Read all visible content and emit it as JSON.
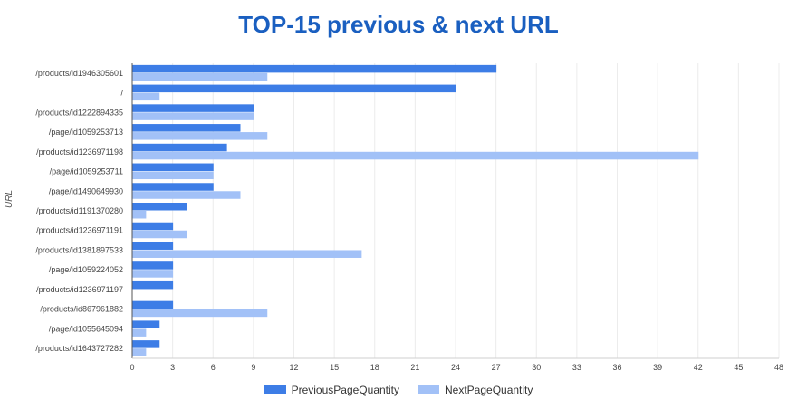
{
  "chart_data": {
    "type": "bar",
    "orientation": "horizontal",
    "title": "TOP-15 previous & next URL",
    "xlabel": "",
    "ylabel": "URL",
    "xlim": [
      0,
      48
    ],
    "xticks": [
      0,
      3,
      6,
      9,
      12,
      15,
      18,
      21,
      24,
      27,
      30,
      33,
      36,
      39,
      42,
      45,
      48
    ],
    "grid": true,
    "legend_position": "bottom",
    "categories": [
      "/products/id1946305601",
      "/",
      "/products/id1222894335",
      "/page/id1059253713",
      "/products/id1236971198",
      "/page/id1059253711",
      "/page/id1490649930",
      "/products/id1191370280",
      "/products/id1236971191",
      "/products/id1381897533",
      "/page/id1059224052",
      "/products/id1236971197",
      "/products/id867961882",
      "/page/id1055645094",
      "/products/id1643727282"
    ],
    "series": [
      {
        "name": "PreviousPageQuantity",
        "color": "#3d7de6",
        "values": [
          27,
          24,
          9,
          8,
          7,
          6,
          6,
          4,
          3,
          3,
          3,
          3,
          3,
          2,
          2
        ]
      },
      {
        "name": "NextPageQuantity",
        "color": "#a2c1f7",
        "values": [
          10,
          2,
          9,
          10,
          42,
          6,
          8,
          1,
          4,
          17,
          3,
          0,
          10,
          1,
          1
        ]
      }
    ]
  }
}
